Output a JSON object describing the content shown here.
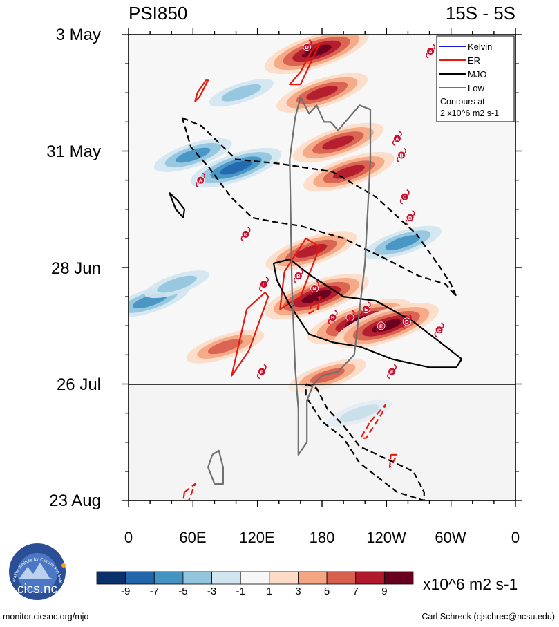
{
  "chart_data": {
    "type": "heatmap",
    "title_left": "PSI850",
    "title_right": "15S - 5S",
    "x_ticks": [
      "0",
      "60E",
      "120E",
      "180",
      "120W",
      "60W",
      "0"
    ],
    "xlim_degrees_east": [
      0,
      360
    ],
    "y_ticks": [
      "3 May",
      "31 May",
      "28 Jun",
      "26 Jul",
      "23 Aug"
    ],
    "ylim_days_since_3_may": [
      0,
      112
    ],
    "forecast_start_day": 84,
    "legend_entries": [
      {
        "name": "Kelvin",
        "color": "#1a1adb"
      },
      {
        "name": "ER",
        "color": "#e8180e"
      },
      {
        "name": "MJO",
        "color": "#000000"
      },
      {
        "name": "Low",
        "color": "#707070"
      }
    ],
    "legend_note_1": "Contours at",
    "legend_note_2": "2 x10^6 m2 s-1",
    "colorbar_labels": [
      "-9",
      "-7",
      "-5",
      "-3",
      "-1",
      "1",
      "3",
      "5",
      "7",
      "9"
    ],
    "colorbar_colors": [
      "#08306b",
      "#2166ac",
      "#4393c3",
      "#92c5de",
      "#d1e5f0",
      "#f7f7f7",
      "#fddbc7",
      "#f4a582",
      "#d6604d",
      "#b2182b",
      "#67001f"
    ],
    "colorbar_units": "x10^6 m2 s-1",
    "anomaly_features": [
      {
        "lon": 175,
        "day": 4,
        "value": 9
      },
      {
        "lon": 180,
        "day": 14,
        "value": 7
      },
      {
        "lon": 195,
        "day": 26,
        "value": 7
      },
      {
        "lon": 205,
        "day": 33,
        "value": 7
      },
      {
        "lon": 100,
        "day": 32,
        "value": -7
      },
      {
        "lon": 60,
        "day": 29,
        "value": -5
      },
      {
        "lon": 170,
        "day": 52,
        "value": 7
      },
      {
        "lon": 175,
        "day": 63,
        "value": 9
      },
      {
        "lon": 215,
        "day": 69,
        "value": 9
      },
      {
        "lon": 240,
        "day": 70,
        "value": 9
      },
      {
        "lon": 255,
        "day": 50,
        "value": -5
      },
      {
        "lon": 20,
        "day": 64,
        "value": -5
      },
      {
        "lon": 45,
        "day": 60,
        "value": -3
      },
      {
        "lon": 185,
        "day": 82,
        "value": 5
      },
      {
        "lon": 215,
        "day": 91,
        "value": -3
      },
      {
        "lon": 105,
        "day": 14,
        "value": -3
      },
      {
        "lon": 90,
        "day": 75,
        "value": 5
      }
    ],
    "storms": [
      {
        "label": "D",
        "lon": 166,
        "day": 3
      },
      {
        "label": "A",
        "lon": 281,
        "day": 4
      },
      {
        "label": "A",
        "lon": 250,
        "day": 25
      },
      {
        "label": "B",
        "lon": 254,
        "day": 29
      },
      {
        "label": "A",
        "lon": 67,
        "day": 35
      },
      {
        "label": "C",
        "lon": 257,
        "day": 39
      },
      {
        "label": "B",
        "lon": 262,
        "day": 44
      },
      {
        "label": "K",
        "lon": 109,
        "day": 48
      },
      {
        "label": "B",
        "lon": 158,
        "day": 58
      },
      {
        "label": "L",
        "lon": 126,
        "day": 60
      },
      {
        "label": "N",
        "lon": 173,
        "day": 61
      },
      {
        "label": "E",
        "lon": 221,
        "day": 66
      },
      {
        "label": "H",
        "lon": 190,
        "day": 68
      },
      {
        "label": "I",
        "lon": 206,
        "day": 68
      },
      {
        "label": "D",
        "lon": 259,
        "day": 69
      },
      {
        "label": "E",
        "lon": 235,
        "day": 70
      },
      {
        "label": "C",
        "lon": 289,
        "day": 71
      },
      {
        "label": "F",
        "lon": 124,
        "day": 81
      },
      {
        "label": "F",
        "lon": 245,
        "day": 81
      }
    ],
    "contours": [
      {
        "series": "ER",
        "dashed": false,
        "points": [
          [
            160,
            9
          ],
          [
            170,
            4
          ],
          [
            178,
            2
          ],
          [
            160,
            12
          ],
          [
            150,
            12
          ],
          [
            160,
            9
          ]
        ]
      },
      {
        "series": "ER",
        "dashed": false,
        "points": [
          [
            64,
            14
          ],
          [
            72,
            11
          ],
          [
            74,
            11
          ],
          [
            66,
            15
          ],
          [
            62,
            16
          ],
          [
            64,
            14
          ]
        ]
      },
      {
        "series": "ER",
        "dashed": false,
        "points": [
          [
            145,
            57
          ],
          [
            165,
            49
          ],
          [
            178,
            51
          ],
          [
            160,
            63
          ],
          [
            141,
            66
          ],
          [
            145,
            57
          ]
        ]
      },
      {
        "series": "ER",
        "dashed": false,
        "points": [
          [
            110,
            66
          ],
          [
            127,
            62
          ],
          [
            130,
            63
          ],
          [
            112,
            76
          ],
          [
            96,
            82
          ],
          [
            110,
            66
          ]
        ]
      },
      {
        "series": "ER",
        "dashed": true,
        "points": [
          [
            170,
            65
          ],
          [
            178,
            63
          ],
          [
            176,
            66
          ],
          [
            168,
            67
          ],
          [
            170,
            65
          ]
        ]
      },
      {
        "series": "ER",
        "dashed": true,
        "points": [
          [
            225,
            93
          ],
          [
            239,
            89
          ],
          [
            236,
            91
          ],
          [
            221,
            97
          ],
          [
            216,
            97
          ],
          [
            225,
            93
          ]
        ]
      },
      {
        "series": "ER",
        "dashed": true,
        "points": [
          [
            244,
            101
          ],
          [
            250,
            101
          ],
          [
            243,
            104
          ],
          [
            244,
            101
          ]
        ]
      },
      {
        "series": "ER",
        "dashed": true,
        "points": [
          [
            52,
            110
          ],
          [
            62,
            108
          ],
          [
            56,
            112
          ],
          [
            51,
            112
          ],
          [
            52,
            110
          ]
        ]
      },
      {
        "series": "MJO",
        "dashed": true,
        "points": [
          [
            50,
            20
          ],
          [
            68,
            22
          ],
          [
            100,
            30
          ],
          [
            140,
            31
          ],
          [
            190,
            33
          ],
          [
            230,
            39
          ],
          [
            268,
            48
          ],
          [
            290,
            56
          ],
          [
            300,
            60
          ],
          [
            305,
            63
          ],
          [
            295,
            60
          ],
          [
            270,
            58
          ],
          [
            240,
            54
          ],
          [
            200,
            49
          ],
          [
            160,
            46
          ],
          [
            135,
            45
          ],
          [
            115,
            44
          ],
          [
            95,
            39
          ],
          [
            75,
            32
          ],
          [
            58,
            27
          ],
          [
            50,
            20
          ]
        ]
      },
      {
        "series": "MJO",
        "dashed": false,
        "points": [
          [
            38,
            38
          ],
          [
            46,
            40
          ],
          [
            52,
            42
          ],
          [
            51,
            44
          ],
          [
            44,
            42
          ],
          [
            38,
            38
          ]
        ]
      },
      {
        "series": "MJO",
        "dashed": false,
        "points": [
          [
            135,
            55
          ],
          [
            150,
            54
          ],
          [
            170,
            58
          ],
          [
            200,
            63
          ],
          [
            230,
            64
          ],
          [
            265,
            69
          ],
          [
            295,
            75
          ],
          [
            310,
            78
          ],
          [
            305,
            80
          ],
          [
            280,
            80
          ],
          [
            245,
            78
          ],
          [
            215,
            75
          ],
          [
            190,
            74
          ],
          [
            168,
            72
          ],
          [
            150,
            65
          ],
          [
            138,
            59
          ],
          [
            135,
            55
          ]
        ]
      },
      {
        "series": "MJO",
        "dashed": true,
        "points": [
          [
            165,
            84
          ],
          [
            175,
            85
          ],
          [
            185,
            90
          ],
          [
            200,
            94
          ],
          [
            215,
            99
          ],
          [
            240,
            102
          ],
          [
            265,
            105
          ],
          [
            275,
            110
          ],
          [
            275,
            112
          ],
          [
            250,
            110
          ],
          [
            230,
            106
          ],
          [
            215,
            103
          ],
          [
            200,
            97
          ],
          [
            180,
            93
          ],
          [
            165,
            87
          ],
          [
            165,
            84
          ]
        ]
      },
      {
        "series": "Low",
        "dashed": false,
        "points": [
          [
            160,
            15
          ],
          [
            168,
            19
          ],
          [
            175,
            17
          ],
          [
            182,
            21
          ],
          [
            188,
            21
          ],
          [
            195,
            23
          ],
          [
            215,
            17
          ],
          [
            225,
            18
          ],
          [
            225,
            30
          ],
          [
            220,
            55
          ],
          [
            210,
            77
          ],
          [
            195,
            81
          ],
          [
            180,
            82
          ],
          [
            172,
            84
          ],
          [
            166,
            88
          ],
          [
            166,
            98
          ],
          [
            158,
            101
          ],
          [
            158,
            90
          ],
          [
            155,
            80
          ],
          [
            152,
            60
          ],
          [
            150,
            30
          ],
          [
            155,
            20
          ],
          [
            160,
            15
          ]
        ]
      },
      {
        "series": "Low",
        "dashed": false,
        "points": [
          [
            78,
            101
          ],
          [
            84,
            100
          ],
          [
            88,
            104
          ],
          [
            88,
            108
          ],
          [
            80,
            108
          ],
          [
            74,
            104
          ],
          [
            78,
            101
          ]
        ]
      }
    ]
  },
  "footer": {
    "logo_ring_text": "Cooperative Institute for Climate and Satellites",
    "logo_name": "cics.nc",
    "left": "monitor.cicsnc.org/mjo",
    "right": "Carl Schreck (cjschrec@ncsu.edu)"
  }
}
